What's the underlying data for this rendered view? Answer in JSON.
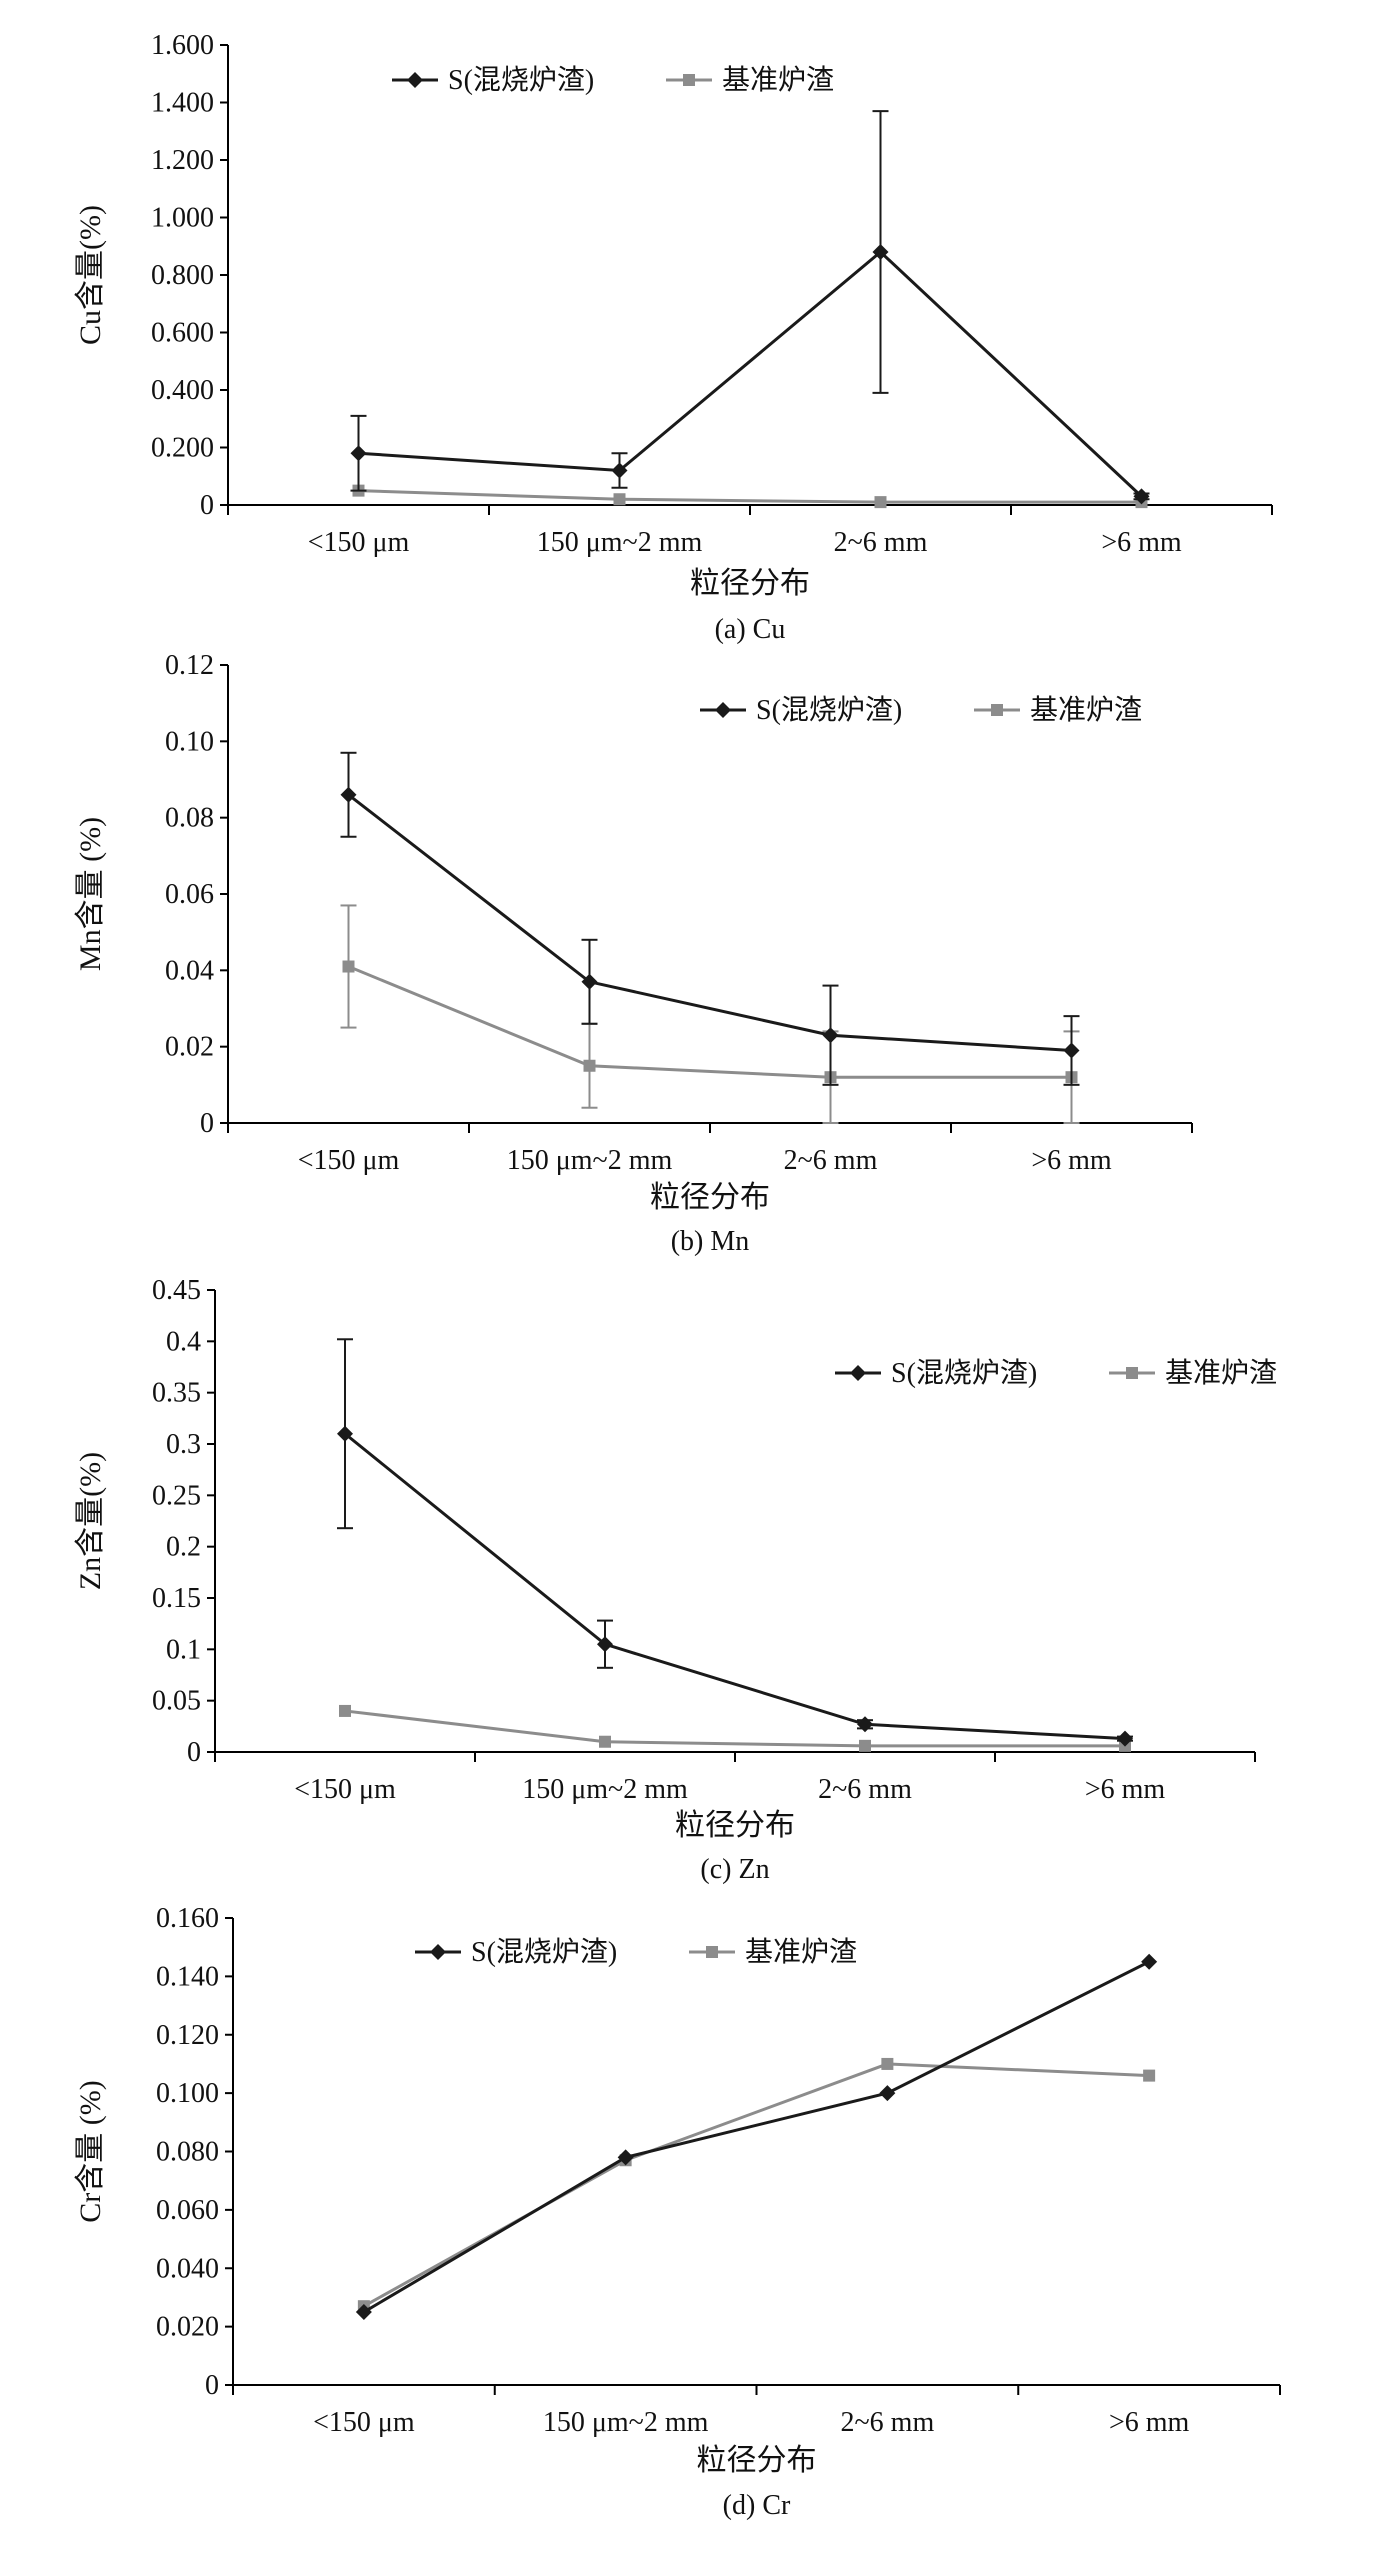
{
  "colors": {
    "series_s": "#1a1a1a",
    "series_base": "#8c8c8c",
    "axis": "#000000"
  },
  "chart_data": [
    {
      "id": "cu",
      "type": "line",
      "grid": false,
      "legend_position": "top-center",
      "caption": "(a) Cu",
      "xlabel": "粒径分布",
      "ylabel": "Cu含量(%)",
      "ylim": [
        0,
        1.6
      ],
      "yticks": [
        "0",
        "0.200",
        "0.400",
        "0.600",
        "0.800",
        "1.000",
        "1.200",
        "1.400",
        "1.600"
      ],
      "categories": [
        "<150 μm",
        "150 μm~2 mm",
        "2~6 mm",
        ">6 mm"
      ],
      "series": [
        {
          "name": "S(混烧炉渣)",
          "values": [
            0.18,
            0.12,
            0.88,
            0.03
          ],
          "error": [
            0.13,
            0.06,
            0.49,
            0.01
          ]
        },
        {
          "name": "基准炉渣",
          "values": [
            0.05,
            0.02,
            0.01,
            0.01
          ]
        }
      ]
    },
    {
      "id": "mn",
      "type": "line",
      "grid": false,
      "legend_position": "top-right",
      "caption": "(b) Mn",
      "xlabel": "粒径分布",
      "ylabel": "Mn含量 (%)",
      "ylim": [
        0,
        0.12
      ],
      "yticks": [
        "0",
        "0.02",
        "0.04",
        "0.06",
        "0.08",
        "0.10",
        "0.12"
      ],
      "categories": [
        "<150 μm",
        "150 μm~2 mm",
        "2~6 mm",
        ">6 mm"
      ],
      "series": [
        {
          "name": "S(混烧炉渣)",
          "values": [
            0.086,
            0.037,
            0.023,
            0.019
          ],
          "error": [
            0.011,
            0.011,
            0.013,
            0.009
          ]
        },
        {
          "name": "基准炉渣",
          "values": [
            0.041,
            0.015,
            0.012,
            0.012
          ],
          "error": [
            0.016,
            0.011,
            0.012,
            0.012
          ]
        }
      ]
    },
    {
      "id": "zn",
      "type": "line",
      "grid": false,
      "legend_position": "top-right",
      "caption": "(c) Zn",
      "xlabel": "粒径分布",
      "ylabel": "Zn含量(%)",
      "ylim": [
        0,
        0.45
      ],
      "yticks": [
        "0",
        "0.05",
        "0.1",
        "0.15",
        "0.2",
        "0.25",
        "0.3",
        "0.35",
        "0.4",
        "0.45"
      ],
      "categories": [
        "<150 μm",
        "150 μm~2 mm",
        "2~6 mm",
        ">6 mm"
      ],
      "series": [
        {
          "name": "S(混烧炉渣)",
          "values": [
            0.31,
            0.105,
            0.027,
            0.013
          ],
          "error": [
            0.092,
            0.023,
            0.004,
            0.002
          ]
        },
        {
          "name": "基准炉渣",
          "values": [
            0.04,
            0.01,
            0.006,
            0.006
          ]
        }
      ]
    },
    {
      "id": "cr",
      "type": "line",
      "grid": false,
      "legend_position": "top-left",
      "caption": "(d) Cr",
      "xlabel": "粒径分布",
      "ylabel": "Cr含量 (%)",
      "ylim": [
        0,
        0.16
      ],
      "yticks": [
        "0",
        "0.020",
        "0.040",
        "0.060",
        "0.080",
        "0.100",
        "0.120",
        "0.140",
        "0.160"
      ],
      "categories": [
        "<150 μm",
        "150 μm~2 mm",
        "2~6 mm",
        ">6 mm"
      ],
      "series": [
        {
          "name": "S(混烧炉渣)",
          "values": [
            0.025,
            0.078,
            0.1,
            0.145
          ]
        },
        {
          "name": "基准炉渣",
          "values": [
            0.027,
            0.077,
            0.11,
            0.106
          ]
        }
      ]
    }
  ]
}
